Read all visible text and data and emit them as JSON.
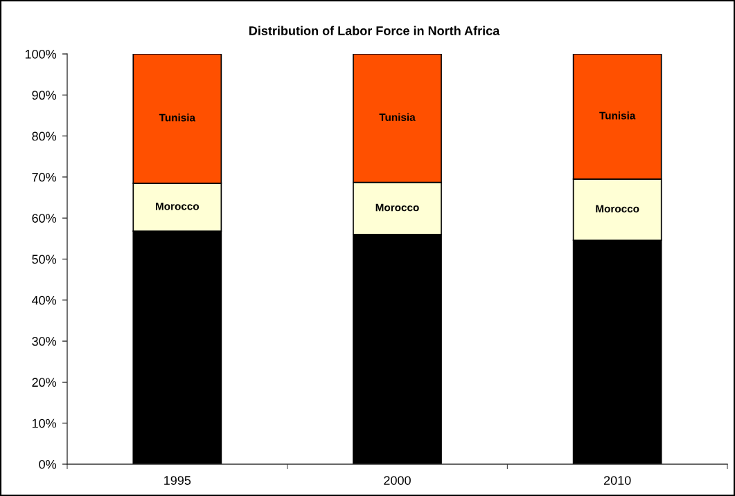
{
  "chart_data": {
    "type": "bar",
    "title": "Distribution of Labor Force in North Africa",
    "categories": [
      "1995",
      "2000",
      "2010"
    ],
    "stacked": true,
    "series": [
      {
        "color": "#000000",
        "values": [
          56.8,
          56.0,
          54.6
        ]
      },
      {
        "name": "Morocco",
        "color": "#ffffd5",
        "values": [
          11.7,
          12.7,
          14.9
        ]
      },
      {
        "name": "Tunisia",
        "color": "#ff5000",
        "values": [
          31.5,
          31.3,
          30.5
        ]
      }
    ],
    "ylim": [
      0,
      100
    ],
    "yticks": [
      {
        "value": 0,
        "label": "0%"
      },
      {
        "value": 10,
        "label": "10%"
      },
      {
        "value": 20,
        "label": "20%"
      },
      {
        "value": 30,
        "label": "30%"
      },
      {
        "value": 40,
        "label": "40%"
      },
      {
        "value": 50,
        "label": "50%"
      },
      {
        "value": 60,
        "label": "60%"
      },
      {
        "value": 70,
        "label": "70%"
      },
      {
        "value": 80,
        "label": "80%"
      },
      {
        "value": 90,
        "label": "90%"
      },
      {
        "value": 100,
        "label": "100%"
      }
    ]
  }
}
